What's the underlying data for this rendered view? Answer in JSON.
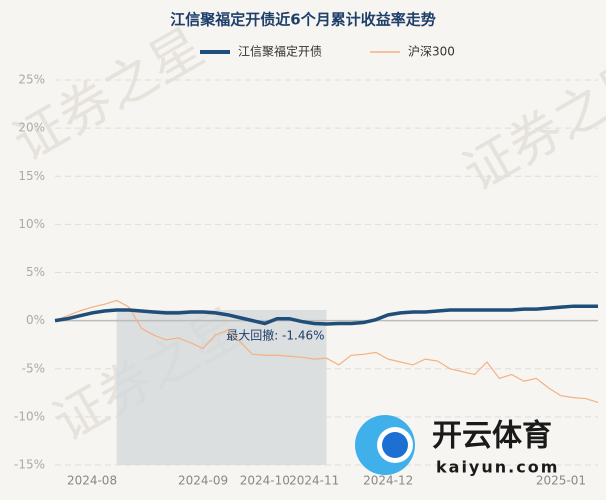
{
  "chart_data": {
    "type": "line",
    "title": "江信聚福定开债近6个月累计收益率走势",
    "annotation": "最大回撤: -1.46%",
    "watermark": "证券之星",
    "logo_text": "开云体育",
    "logo_url": "kaiyun.com",
    "categories": [
      null,
      null,
      null,
      "2024-08",
      null,
      null,
      null,
      null,
      null,
      null,
      null,
      null,
      "2024-09",
      null,
      null,
      null,
      null,
      "2024-10",
      null,
      null,
      null,
      "2024-11",
      null,
      null,
      null,
      null,
      null,
      "2024-12",
      null,
      null,
      null,
      null,
      null,
      null,
      null,
      null,
      null,
      null,
      null,
      null,
      null,
      "2025-01",
      null,
      null,
      null
    ],
    "series": [
      {
        "name": "江信聚福定开债",
        "color": "#1f4e79",
        "values": [
          0.0,
          0.2,
          0.5,
          0.8,
          1.0,
          1.1,
          1.1,
          1.0,
          0.9,
          0.8,
          0.8,
          0.9,
          0.9,
          0.8,
          0.6,
          0.3,
          0.0,
          -0.3,
          0.2,
          0.2,
          -0.1,
          -0.3,
          -0.35,
          -0.3,
          -0.3,
          -0.2,
          0.1,
          0.6,
          0.8,
          0.9,
          0.9,
          1.0,
          1.1,
          1.1,
          1.1,
          1.1,
          1.1,
          1.1,
          1.2,
          1.2,
          1.3,
          1.4,
          1.5,
          1.5,
          1.5
        ]
      },
      {
        "name": "沪深300",
        "color": "#f4b183",
        "values": [
          0.0,
          0.5,
          1.0,
          1.4,
          1.7,
          2.1,
          1.4,
          -0.8,
          -1.5,
          -2.0,
          -1.8,
          -2.3,
          -2.9,
          -1.5,
          -1.0,
          -2.2,
          -3.5,
          -3.6,
          -3.6,
          -3.7,
          -3.8,
          -4.0,
          -3.9,
          -4.6,
          -3.6,
          -3.5,
          -3.3,
          -4.0,
          -4.3,
          -4.6,
          -4.0,
          -4.2,
          -5.0,
          -5.3,
          -5.6,
          -4.3,
          -6.0,
          -5.6,
          -6.3,
          -6.0,
          -7.0,
          -7.8,
          -8.0,
          -8.1,
          -8.5
        ]
      }
    ],
    "ylim": [
      -15,
      25
    ],
    "yticks": [
      {
        "value": -15,
        "label": "-15%"
      },
      {
        "value": -10,
        "label": "-10%"
      },
      {
        "value": -5,
        "label": "-5%"
      },
      {
        "value": 0,
        "label": "0%"
      },
      {
        "value": 5,
        "label": "5%"
      },
      {
        "value": 10,
        "label": "10%"
      },
      {
        "value": 15,
        "label": "15%"
      },
      {
        "value": 20,
        "label": "20%"
      },
      {
        "value": 25,
        "label": "25%"
      }
    ],
    "grid": true
  }
}
